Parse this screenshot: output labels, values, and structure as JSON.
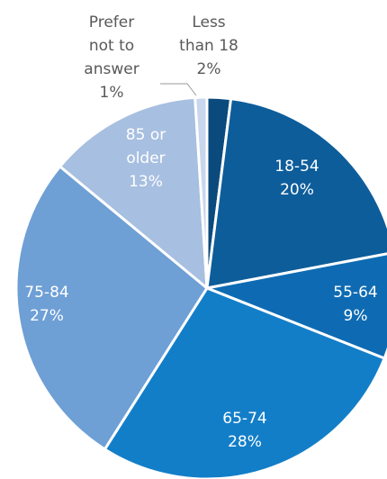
{
  "chart_data": {
    "type": "pie",
    "start_angle_deg": 0,
    "direction": "clockwise",
    "slices": [
      {
        "label_lines": [
          "Less",
          "than 18"
        ],
        "value_text": "2%",
        "value": 2,
        "color": "#0b4a7c",
        "label_color": "#595959"
      },
      {
        "label_lines": [
          "18-54"
        ],
        "value_text": "20%",
        "value": 20,
        "color": "#0d5d9b",
        "label_color": "#ffffff"
      },
      {
        "label_lines": [
          "55-64"
        ],
        "value_text": "9%",
        "value": 9,
        "color": "#0e6bb3",
        "label_color": "#ffffff"
      },
      {
        "label_lines": [
          "65-74"
        ],
        "value_text": "28%",
        "value": 28,
        "color": "#137ec8",
        "label_color": "#ffffff"
      },
      {
        "label_lines": [
          "75-84"
        ],
        "value_text": "27%",
        "value": 27,
        "color": "#6e9fd5",
        "label_color": "#ffffff"
      },
      {
        "label_lines": [
          "85 or",
          "older"
        ],
        "value_text": "13%",
        "value": 13,
        "color": "#a7bfe0",
        "label_color": "#ffffff"
      },
      {
        "label_lines": [
          "Prefer",
          "not to",
          "answer"
        ],
        "value_text": "1%",
        "value": 1,
        "color": "#c8d6ee",
        "label_color": "#595959"
      }
    ]
  }
}
